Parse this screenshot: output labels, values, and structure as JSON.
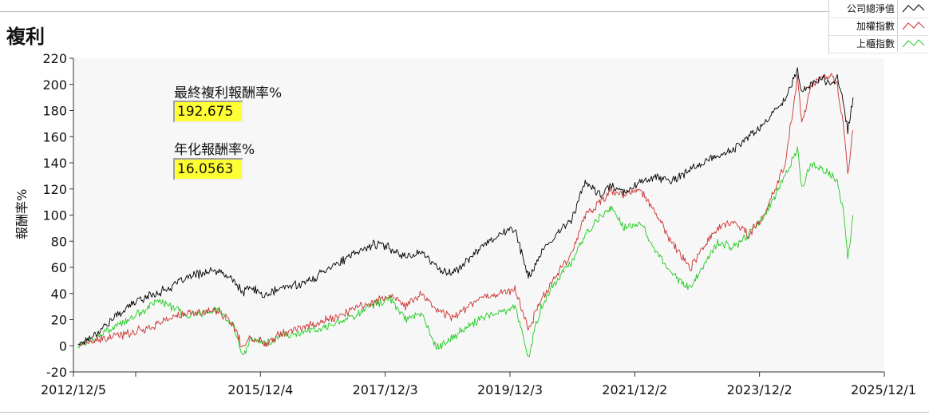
{
  "header": {
    "title": "複利"
  },
  "legend": [
    {
      "label": "公司總淨值",
      "color": "#000000"
    },
    {
      "label": "加權指數",
      "color": "#cc3333"
    },
    {
      "label": "上櫃指數",
      "color": "#22cc22"
    }
  ],
  "stats": {
    "final_label": "最終複利報酬率%",
    "final_value": "192.675",
    "annual_label": "年化報酬率%",
    "annual_value": "16.0563"
  },
  "chart_data": {
    "type": "line",
    "title": "複利",
    "ylabel": "報酬率%",
    "xlabel": "",
    "ylim": [
      -20,
      220
    ],
    "yticks": [
      -20,
      0,
      20,
      40,
      60,
      80,
      100,
      120,
      140,
      160,
      180,
      200,
      220
    ],
    "xlim": [
      "2012/12/5",
      "2025/12/1"
    ],
    "xticks": [
      "2012/12/5",
      "2015/12/4",
      "2017/12/3",
      "2019/12/3",
      "2021/12/2",
      "2023/12/2",
      "2025/12/1"
    ],
    "grid": false,
    "legend_position": "top-right",
    "x": [
      "2013/1/1",
      "2013/4/1",
      "2013/7/1",
      "2013/10/1",
      "2014/1/1",
      "2014/4/1",
      "2014/7/1",
      "2014/10/1",
      "2015/1/1",
      "2015/4/1",
      "2015/7/1",
      "2015/8/24",
      "2015/10/1",
      "2016/1/1",
      "2016/4/1",
      "2016/7/1",
      "2016/10/1",
      "2017/1/1",
      "2017/4/1",
      "2017/7/1",
      "2017/10/1",
      "2018/1/1",
      "2018/4/1",
      "2018/7/1",
      "2018/10/1",
      "2018/12/25",
      "2019/4/1",
      "2019/7/1",
      "2019/10/1",
      "2020/1/1",
      "2020/3/19",
      "2020/6/1",
      "2020/9/1",
      "2020/12/1",
      "2021/2/15",
      "2021/5/15",
      "2021/7/15",
      "2021/10/1",
      "2022/1/1",
      "2022/4/1",
      "2022/7/1",
      "2022/10/25",
      "2023/1/1",
      "2023/4/1",
      "2023/7/1",
      "2023/10/1",
      "2024/1/1",
      "2024/3/1",
      "2024/5/1",
      "2024/7/11",
      "2024/8/5",
      "2024/10/1",
      "2024/12/1",
      "2025/2/1",
      "2025/3/1",
      "2025/4/9",
      "2025/5/1",
      "2025/6/1"
    ],
    "series": [
      {
        "name": "公司總淨值",
        "color": "#000000",
        "values": [
          1,
          8,
          18,
          28,
          36,
          40,
          45,
          52,
          56,
          57,
          50,
          40,
          45,
          38,
          44,
          47,
          50,
          60,
          65,
          72,
          78,
          75,
          68,
          72,
          60,
          55,
          65,
          78,
          85,
          90,
          52,
          70,
          85,
          98,
          125,
          115,
          122,
          118,
          125,
          130,
          125,
          135,
          140,
          145,
          150,
          160,
          170,
          180,
          190,
          210,
          195,
          200,
          205,
          200,
          205,
          185,
          165,
          190
        ]
      },
      {
        "name": "加權指數",
        "color": "#cc3333",
        "values": [
          1,
          3,
          6,
          9,
          12,
          16,
          22,
          24,
          26,
          27,
          15,
          -2,
          6,
          2,
          10,
          13,
          16,
          20,
          24,
          30,
          34,
          38,
          30,
          40,
          28,
          22,
          30,
          38,
          40,
          44,
          12,
          35,
          55,
          72,
          100,
          110,
          118,
          115,
          120,
          102,
          80,
          60,
          75,
          90,
          95,
          85,
          100,
          120,
          140,
          205,
          170,
          200,
          205,
          205,
          200,
          165,
          130,
          165
        ]
      },
      {
        "name": "上櫃指數",
        "color": "#22cc22",
        "values": [
          0,
          5,
          12,
          18,
          25,
          35,
          30,
          22,
          26,
          28,
          15,
          -10,
          5,
          2,
          8,
          10,
          12,
          15,
          20,
          25,
          32,
          36,
          20,
          25,
          -2,
          5,
          15,
          22,
          25,
          30,
          -8,
          30,
          50,
          65,
          85,
          100,
          105,
          90,
          95,
          75,
          55,
          45,
          60,
          80,
          75,
          85,
          100,
          115,
          130,
          150,
          120,
          140,
          135,
          130,
          125,
          100,
          65,
          100
        ]
      }
    ]
  }
}
